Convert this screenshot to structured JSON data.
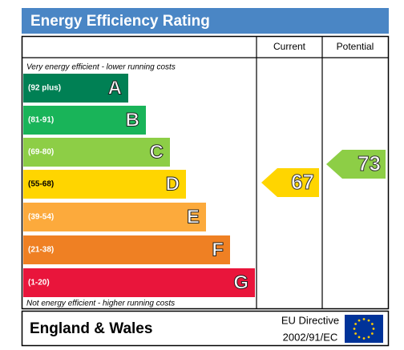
{
  "header": {
    "title": "Energy Efficiency Rating"
  },
  "columns": [
    "Current",
    "Potential"
  ],
  "top_note": "Very energy efficient - lower running costs",
  "bottom_note": "Not energy efficient - higher running costs",
  "bands": [
    {
      "range": "(92 plus)",
      "letter": "A",
      "color": "#008054"
    },
    {
      "range": "(81-91)",
      "letter": "B",
      "color": "#19b459"
    },
    {
      "range": "(69-80)",
      "letter": "C",
      "color": "#8dce46"
    },
    {
      "range": "(55-68)",
      "letter": "D",
      "color": "#ffd500"
    },
    {
      "range": "(39-54)",
      "letter": "E",
      "color": "#fcaa3c"
    },
    {
      "range": "(21-38)",
      "letter": "F",
      "color": "#ef8023"
    },
    {
      "range": "(1-20)",
      "letter": "G",
      "color": "#e9153b"
    }
  ],
  "current": {
    "value": 67,
    "color": "#ffd500"
  },
  "potential": {
    "value": 73,
    "color": "#8dce46"
  },
  "footer": {
    "region": "England & Wales",
    "directive_line1": "EU Directive",
    "directive_line2": "2002/91/EC"
  }
}
